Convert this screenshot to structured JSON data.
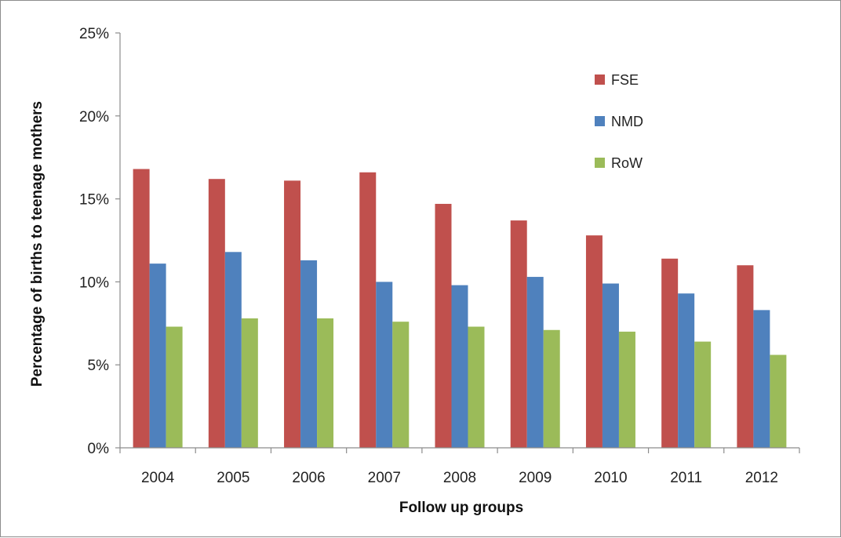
{
  "chart_data": {
    "type": "bar",
    "title": "",
    "xlabel": "Follow up groups",
    "ylabel": "Percentage of births to teenage mothers",
    "categories": [
      "2004",
      "2005",
      "2006",
      "2007",
      "2008",
      "2009",
      "2010",
      "2011",
      "2012"
    ],
    "series": [
      {
        "name": "FSE",
        "color": "#c0504d",
        "values": [
          16.8,
          16.2,
          16.1,
          16.6,
          14.7,
          13.7,
          12.8,
          11.4,
          11.0
        ]
      },
      {
        "name": "NMD",
        "color": "#4f81bd",
        "values": [
          11.1,
          11.8,
          11.3,
          10.0,
          9.8,
          10.3,
          9.9,
          9.3,
          8.3
        ]
      },
      {
        "name": "RoW",
        "color": "#9bbb59",
        "values": [
          7.3,
          7.8,
          7.8,
          7.6,
          7.3,
          7.1,
          7.0,
          6.4,
          5.6
        ]
      }
    ],
    "ylim": [
      0,
      25
    ],
    "yticks": [
      "0%",
      "5%",
      "10%",
      "15%",
      "20%",
      "25%"
    ],
    "grid": false,
    "legend_position": "top-right"
  }
}
